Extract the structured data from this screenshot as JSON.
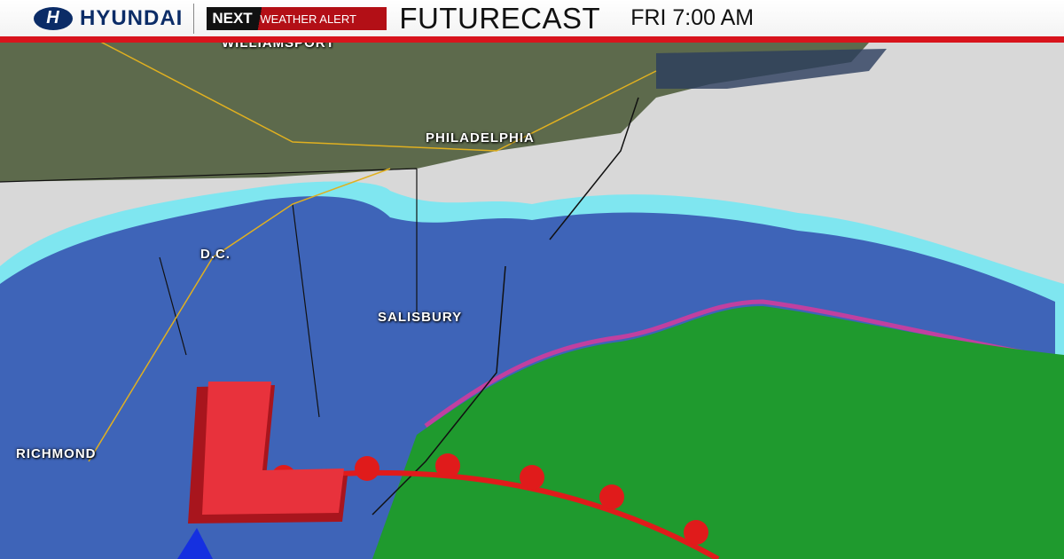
{
  "header": {
    "sponsor": "HYUNDAI",
    "brand_next": "NEXT",
    "brand_alert": "WEATHER ALERT",
    "title": "FUTURECAST",
    "time": "FRI 7:00 AM"
  },
  "cities": [
    {
      "name": "WILLIAMSPORT"
    },
    {
      "name": "PHILADELPHIA"
    },
    {
      "name": "D.C."
    },
    {
      "name": "SALISBURY"
    },
    {
      "name": "RICHMOND"
    }
  ],
  "low_pressure": {
    "symbol": "L",
    "color": "#e8323c"
  },
  "colors": {
    "snow": "#3e64b8",
    "light_snow": "#7fe6f0",
    "rain": "#1f9a2e",
    "mix": "#c040a0",
    "warm_front": "#e01b1b",
    "accent": "#d8141c"
  }
}
